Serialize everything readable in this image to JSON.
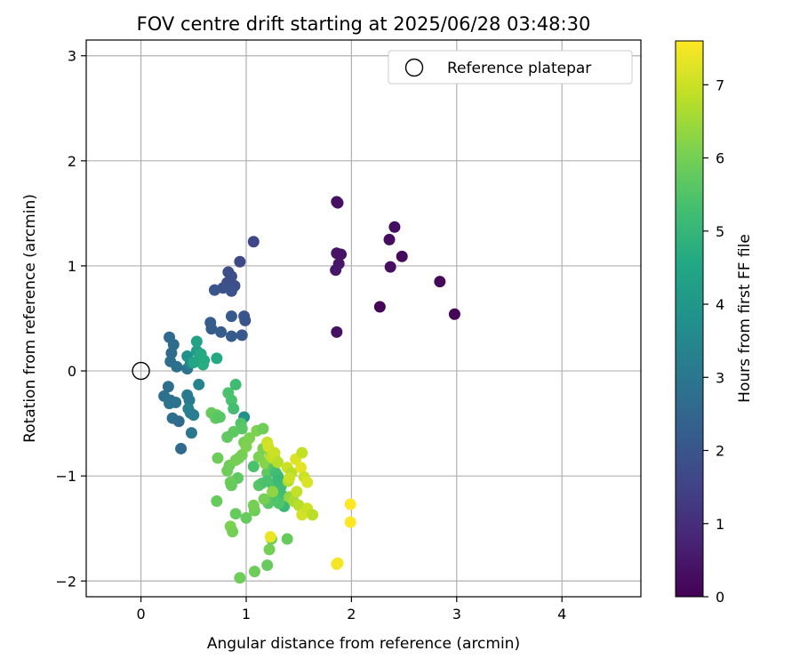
{
  "chart_data": {
    "type": "scatter",
    "title": "FOV centre drift starting at 2025/06/28 03:48:30",
    "xlabel": "Angular distance from reference (arcmin)",
    "ylabel": "Rotation from reference (arcmin)",
    "xlim": [
      -0.52,
      4.75
    ],
    "ylim": [
      -2.15,
      3.15
    ],
    "xticks": [
      "0",
      "1",
      "2",
      "3",
      "4"
    ],
    "yticks": [
      "−2",
      "−1",
      "0",
      "1",
      "2",
      "3"
    ],
    "grid": true,
    "legend": {
      "position": "top-right",
      "entries": [
        "Reference platepar"
      ]
    },
    "reference_point": {
      "x": 0,
      "y": 0
    },
    "colorbar": {
      "label": "Hours from first FF file",
      "colormap": "viridis",
      "range": [
        0,
        7.6
      ],
      "ticks": [
        "0",
        "1",
        "2",
        "3",
        "4",
        "5",
        "6",
        "7"
      ]
    },
    "points": [
      {
        "x": 1.86,
        "y": 1.61,
        "c": 0.35
      },
      {
        "x": 1.87,
        "y": 1.6,
        "c": 0.35
      },
      {
        "x": 2.41,
        "y": 1.37,
        "c": 0.25
      },
      {
        "x": 2.36,
        "y": 1.25,
        "c": 0.25
      },
      {
        "x": 1.86,
        "y": 1.12,
        "c": 0.4
      },
      {
        "x": 1.9,
        "y": 1.11,
        "c": 0.4
      },
      {
        "x": 2.48,
        "y": 1.09,
        "c": 0.2
      },
      {
        "x": 1.88,
        "y": 1.02,
        "c": 0.45
      },
      {
        "x": 2.37,
        "y": 0.99,
        "c": 0.3
      },
      {
        "x": 1.85,
        "y": 0.96,
        "c": 0.5
      },
      {
        "x": 2.84,
        "y": 0.85,
        "c": 0.15
      },
      {
        "x": 2.27,
        "y": 0.61,
        "c": 0.1
      },
      {
        "x": 2.98,
        "y": 0.54,
        "c": 0.1
      },
      {
        "x": 1.86,
        "y": 0.37,
        "c": 0.35
      },
      {
        "x": 1.07,
        "y": 1.23,
        "c": 1.6
      },
      {
        "x": 0.94,
        "y": 1.04,
        "c": 1.7
      },
      {
        "x": 0.83,
        "y": 0.94,
        "c": 1.8
      },
      {
        "x": 0.86,
        "y": 0.9,
        "c": 1.8
      },
      {
        "x": 0.82,
        "y": 0.84,
        "c": 1.8
      },
      {
        "x": 0.89,
        "y": 0.81,
        "c": 1.8
      },
      {
        "x": 0.78,
        "y": 0.79,
        "c": 1.9
      },
      {
        "x": 0.86,
        "y": 0.76,
        "c": 1.9
      },
      {
        "x": 0.7,
        "y": 0.77,
        "c": 2.0
      },
      {
        "x": 0.86,
        "y": 0.52,
        "c": 2.1
      },
      {
        "x": 0.98,
        "y": 0.52,
        "c": 2.0
      },
      {
        "x": 0.99,
        "y": 0.48,
        "c": 2.0
      },
      {
        "x": 0.66,
        "y": 0.46,
        "c": 2.2
      },
      {
        "x": 0.67,
        "y": 0.4,
        "c": 2.2
      },
      {
        "x": 0.76,
        "y": 0.37,
        "c": 2.2
      },
      {
        "x": 0.86,
        "y": 0.33,
        "c": 2.2
      },
      {
        "x": 0.96,
        "y": 0.34,
        "c": 2.1
      },
      {
        "x": 0.27,
        "y": 0.32,
        "c": 2.6
      },
      {
        "x": 0.31,
        "y": 0.25,
        "c": 2.6
      },
      {
        "x": 0.29,
        "y": 0.17,
        "c": 2.6
      },
      {
        "x": 0.28,
        "y": 0.09,
        "c": 2.7
      },
      {
        "x": 0.34,
        "y": 0.04,
        "c": 2.8
      },
      {
        "x": 0.44,
        "y": 0.02,
        "c": 2.9
      },
      {
        "x": 0.47,
        "y": 0.07,
        "c": 3.5
      },
      {
        "x": 0.44,
        "y": 0.14,
        "c": 3.8
      },
      {
        "x": 0.53,
        "y": 0.19,
        "c": 4.2
      },
      {
        "x": 0.53,
        "y": 0.28,
        "c": 4.4
      },
      {
        "x": 0.55,
        "y": 0.11,
        "c": 4.5
      },
      {
        "x": 0.6,
        "y": 0.1,
        "c": 4.6
      },
      {
        "x": 0.59,
        "y": 0.06,
        "c": 4.7
      },
      {
        "x": 0.5,
        "y": 0.08,
        "c": 4.5
      },
      {
        "x": 0.57,
        "y": 0.16,
        "c": 4.6
      },
      {
        "x": 0.72,
        "y": 0.12,
        "c": 4.6
      },
      {
        "x": 0.26,
        "y": -0.15,
        "c": 2.7
      },
      {
        "x": 0.22,
        "y": -0.24,
        "c": 2.8
      },
      {
        "x": 0.28,
        "y": -0.28,
        "c": 2.9
      },
      {
        "x": 0.27,
        "y": -0.31,
        "c": 2.9
      },
      {
        "x": 0.33,
        "y": -0.3,
        "c": 2.9
      },
      {
        "x": 0.3,
        "y": -0.45,
        "c": 2.7
      },
      {
        "x": 0.36,
        "y": -0.48,
        "c": 2.6
      },
      {
        "x": 0.38,
        "y": -0.74,
        "c": 2.6
      },
      {
        "x": 0.44,
        "y": -0.23,
        "c": 3.1
      },
      {
        "x": 0.46,
        "y": -0.28,
        "c": 3.1
      },
      {
        "x": 0.45,
        "y": -0.36,
        "c": 3.3
      },
      {
        "x": 0.47,
        "y": -0.4,
        "c": 3.3
      },
      {
        "x": 0.5,
        "y": -0.42,
        "c": 3.2
      },
      {
        "x": 0.48,
        "y": -0.59,
        "c": 3.0
      },
      {
        "x": 0.55,
        "y": -0.13,
        "c": 3.4
      },
      {
        "x": 0.67,
        "y": -0.4,
        "c": 5.8
      },
      {
        "x": 0.72,
        "y": -0.42,
        "c": 5.8
      },
      {
        "x": 0.71,
        "y": -0.45,
        "c": 5.7
      },
      {
        "x": 0.75,
        "y": -0.44,
        "c": 5.6
      },
      {
        "x": 0.83,
        "y": -0.21,
        "c": 5.4
      },
      {
        "x": 0.86,
        "y": -0.28,
        "c": 5.4
      },
      {
        "x": 0.88,
        "y": -0.36,
        "c": 5.3
      },
      {
        "x": 0.9,
        "y": -0.13,
        "c": 5.2
      },
      {
        "x": 0.98,
        "y": -0.44,
        "c": 3.8
      },
      {
        "x": 0.95,
        "y": -0.5,
        "c": 5.5
      },
      {
        "x": 0.96,
        "y": -0.55,
        "c": 5.6
      },
      {
        "x": 0.88,
        "y": -0.58,
        "c": 5.7
      },
      {
        "x": 0.82,
        "y": -0.63,
        "c": 5.7
      },
      {
        "x": 0.73,
        "y": -0.83,
        "c": 5.9
      },
      {
        "x": 0.72,
        "y": -1.24,
        "c": 5.8
      },
      {
        "x": 0.84,
        "y": -0.9,
        "c": 5.9
      },
      {
        "x": 0.82,
        "y": -0.95,
        "c": 5.9
      },
      {
        "x": 0.9,
        "y": -0.85,
        "c": 6.0
      },
      {
        "x": 0.96,
        "y": -0.8,
        "c": 6.0
      },
      {
        "x": 0.93,
        "y": -0.83,
        "c": 6.0
      },
      {
        "x": 0.98,
        "y": -0.68,
        "c": 6.0
      },
      {
        "x": 1.0,
        "y": -0.72,
        "c": 6.1
      },
      {
        "x": 1.03,
        "y": -0.64,
        "c": 6.1
      },
      {
        "x": 1.1,
        "y": -0.57,
        "c": 6.1
      },
      {
        "x": 1.16,
        "y": -0.55,
        "c": 5.9
      },
      {
        "x": 0.92,
        "y": -1.02,
        "c": 5.7
      },
      {
        "x": 0.85,
        "y": -1.06,
        "c": 5.9
      },
      {
        "x": 0.86,
        "y": -1.09,
        "c": 5.8
      },
      {
        "x": 0.9,
        "y": -1.36,
        "c": 5.8
      },
      {
        "x": 1.0,
        "y": -1.4,
        "c": 5.8
      },
      {
        "x": 1.08,
        "y": -1.33,
        "c": 5.9
      },
      {
        "x": 1.07,
        "y": -1.28,
        "c": 6.0
      },
      {
        "x": 0.85,
        "y": -1.48,
        "c": 6.1
      },
      {
        "x": 0.87,
        "y": -1.53,
        "c": 6.0
      },
      {
        "x": 0.94,
        "y": -1.97,
        "c": 5.9
      },
      {
        "x": 1.08,
        "y": -1.91,
        "c": 5.9
      },
      {
        "x": 1.2,
        "y": -1.85,
        "c": 5.8
      },
      {
        "x": 1.22,
        "y": -1.7,
        "c": 6.0
      },
      {
        "x": 1.39,
        "y": -1.6,
        "c": 5.8
      },
      {
        "x": 1.24,
        "y": -1.6,
        "c": 5.9
      },
      {
        "x": 1.07,
        "y": -0.91,
        "c": 5.4
      },
      {
        "x": 1.12,
        "y": -0.82,
        "c": 6.1
      },
      {
        "x": 1.16,
        "y": -0.74,
        "c": 6.1
      },
      {
        "x": 1.12,
        "y": -1.09,
        "c": 5.6
      },
      {
        "x": 1.15,
        "y": -1.07,
        "c": 5.5
      },
      {
        "x": 1.2,
        "y": -0.97,
        "c": 5.7
      },
      {
        "x": 1.18,
        "y": -0.88,
        "c": 6.2
      },
      {
        "x": 1.26,
        "y": -0.93,
        "c": 5.6
      },
      {
        "x": 1.28,
        "y": -0.97,
        "c": 5.3
      },
      {
        "x": 1.2,
        "y": -1.05,
        "c": 5.4
      },
      {
        "x": 1.25,
        "y": -1.08,
        "c": 5.4
      },
      {
        "x": 1.3,
        "y": -1.0,
        "c": 5.2
      },
      {
        "x": 1.31,
        "y": -1.04,
        "c": 5.1
      },
      {
        "x": 1.33,
        "y": -1.1,
        "c": 5.2
      },
      {
        "x": 1.34,
        "y": -1.18,
        "c": 5.2
      },
      {
        "x": 1.28,
        "y": -1.16,
        "c": 5.3
      },
      {
        "x": 1.26,
        "y": -1.2,
        "c": 5.4
      },
      {
        "x": 1.21,
        "y": -1.26,
        "c": 5.6
      },
      {
        "x": 1.17,
        "y": -1.22,
        "c": 6.0
      },
      {
        "x": 1.25,
        "y": -1.15,
        "c": 6.3
      },
      {
        "x": 1.36,
        "y": -1.29,
        "c": 5.1
      },
      {
        "x": 1.31,
        "y": -1.26,
        "c": 5.5
      },
      {
        "x": 1.27,
        "y": -0.83,
        "c": 6.3
      },
      {
        "x": 1.23,
        "y": -0.8,
        "c": 6.4
      },
      {
        "x": 1.2,
        "y": -0.68,
        "c": 7.0
      },
      {
        "x": 1.21,
        "y": -0.72,
        "c": 7.1
      },
      {
        "x": 1.24,
        "y": -0.82,
        "c": 6.9
      },
      {
        "x": 1.27,
        "y": -0.78,
        "c": 7.0
      },
      {
        "x": 1.3,
        "y": -0.87,
        "c": 6.8
      },
      {
        "x": 1.39,
        "y": -0.92,
        "c": 7.0
      },
      {
        "x": 1.43,
        "y": -0.97,
        "c": 6.8
      },
      {
        "x": 1.4,
        "y": -1.05,
        "c": 6.7
      },
      {
        "x": 1.41,
        "y": -1.2,
        "c": 6.4
      },
      {
        "x": 1.45,
        "y": -1.24,
        "c": 6.6
      },
      {
        "x": 1.48,
        "y": -1.15,
        "c": 6.9
      },
      {
        "x": 1.5,
        "y": -1.28,
        "c": 6.8
      },
      {
        "x": 1.53,
        "y": -1.37,
        "c": 7.1
      },
      {
        "x": 1.58,
        "y": -1.31,
        "c": 7.0
      },
      {
        "x": 1.63,
        "y": -1.37,
        "c": 6.8
      },
      {
        "x": 1.47,
        "y": -0.84,
        "c": 7.2
      },
      {
        "x": 1.53,
        "y": -0.78,
        "c": 6.9
      },
      {
        "x": 1.52,
        "y": -0.92,
        "c": 7.3
      },
      {
        "x": 1.55,
        "y": -1.01,
        "c": 7.0
      },
      {
        "x": 1.58,
        "y": -1.06,
        "c": 7.2
      },
      {
        "x": 1.41,
        "y": -1.02,
        "c": 7.0
      },
      {
        "x": 1.23,
        "y": -1.58,
        "c": 7.4
      },
      {
        "x": 1.86,
        "y": -1.84,
        "c": 7.5
      },
      {
        "x": 1.87,
        "y": -1.83,
        "c": 7.5
      },
      {
        "x": 1.99,
        "y": -1.27,
        "c": 7.6
      },
      {
        "x": 1.99,
        "y": -1.44,
        "c": 7.6
      }
    ]
  }
}
